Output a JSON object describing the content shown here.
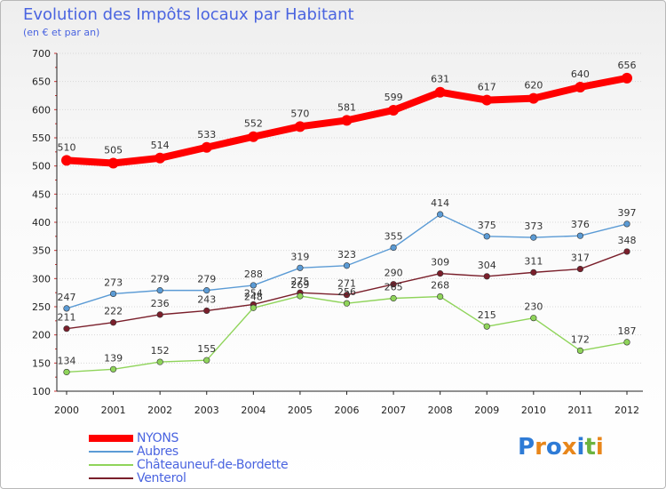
{
  "chart_data": {
    "type": "line",
    "title": "Evolution des Impôts locaux par Habitant",
    "subtitle": "(en € et par an)",
    "x": [
      "2000",
      "2001",
      "2002",
      "2003",
      "2004",
      "2005",
      "2006",
      "2007",
      "2008",
      "2009",
      "2010",
      "2011",
      "2012"
    ],
    "ylim": [
      100,
      700
    ],
    "yticks": [
      100,
      150,
      200,
      250,
      300,
      350,
      400,
      450,
      500,
      550,
      600,
      650,
      700
    ],
    "grid": "horizontal",
    "legend_position": "bottom-left",
    "series": [
      {
        "name": "NYONS",
        "color": "#ff0000",
        "values": [
          510,
          505,
          514,
          533,
          552,
          570,
          581,
          599,
          631,
          617,
          620,
          640,
          656
        ]
      },
      {
        "name": "Aubres",
        "color": "#5b9bd5",
        "values": [
          247,
          273,
          279,
          279,
          288,
          319,
          323,
          355,
          414,
          375,
          373,
          376,
          397
        ]
      },
      {
        "name": "Châteauneuf-de-Bordette",
        "color": "#8fd45a",
        "values": [
          134,
          139,
          152,
          155,
          248,
          269,
          256,
          265,
          268,
          215,
          230,
          172,
          187
        ]
      },
      {
        "name": "Venterol",
        "color": "#7a1f2b",
        "values": [
          211,
          222,
          236,
          243,
          254,
          275,
          271,
          290,
          309,
          304,
          311,
          317,
          348
        ]
      }
    ]
  },
  "logo": {
    "text": "Proxiti",
    "letters": [
      "P",
      "r",
      "o",
      "x",
      "i",
      "t",
      "i"
    ],
    "colors": [
      "#2e7bd6",
      "#e8861a",
      "#2e7bd6",
      "#e8861a",
      "#2e7bd6",
      "#6cb33f",
      "#e8861a"
    ]
  }
}
